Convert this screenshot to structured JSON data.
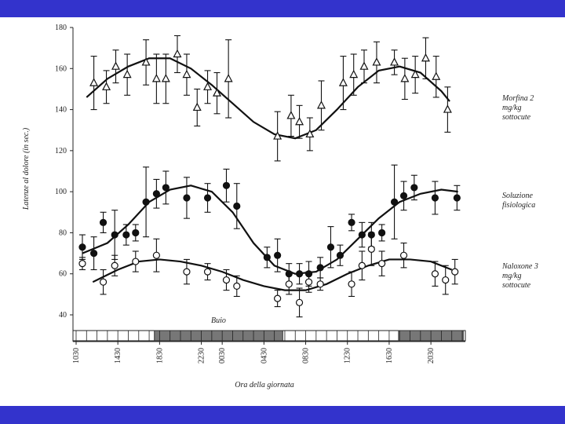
{
  "chart_data": {
    "type": "errorbar",
    "y_label": "Latenze al dolore (in sec.)",
    "x_label": "Ora della giornata",
    "dark_label": "Buio",
    "dark_periods": [
      [
        7.5,
        19.8
      ],
      [
        30.9,
        37.1
      ]
    ],
    "xlim": [
      -0.3,
      37.3
    ],
    "xticks": [
      {
        "value": 0,
        "label": "1030"
      },
      {
        "value": 4,
        "label": "1430"
      },
      {
        "value": 8,
        "label": "1830"
      },
      {
        "value": 12,
        "label": "2230"
      },
      {
        "value": 14,
        "label": "0030"
      },
      {
        "value": 18,
        "label": "0430"
      },
      {
        "value": 22,
        "label": "0830"
      },
      {
        "value": 26,
        "label": "1230"
      },
      {
        "value": 30,
        "label": "1630"
      },
      {
        "value": 34,
        "label": "2030"
      }
    ],
    "ylim": [
      27,
      180
    ],
    "yticks": [
      40,
      60,
      80,
      100,
      120,
      140,
      160,
      180
    ],
    "series": [
      {
        "name": "Morfina 2 mg/kg sottocute",
        "color": "#111111",
        "marker": "triangle-open",
        "x": [
          1.7,
          2.9,
          3.8,
          4.9,
          6.7,
          7.7,
          8.6,
          9.7,
          10.6,
          11.6,
          12.6,
          13.5,
          14.6,
          19.3,
          20.6,
          21.4,
          22.4,
          23.5,
          25.6,
          26.6,
          27.6,
          28.8,
          30.5,
          31.5,
          32.5,
          33.5,
          34.5,
          35.6
        ],
        "values": [
          153,
          151,
          161,
          157,
          163,
          155,
          155,
          167,
          157,
          141,
          151,
          148,
          155,
          127,
          137,
          134,
          128,
          142,
          153,
          157,
          161,
          163,
          163,
          155,
          157,
          165,
          156,
          140
        ],
        "errors": [
          13,
          8,
          8,
          10,
          11,
          12,
          12,
          9,
          10,
          9,
          8,
          10,
          19,
          12,
          10,
          8,
          8,
          12,
          13,
          10,
          8,
          10,
          6,
          10,
          9,
          10,
          10,
          11
        ],
        "fit": {
          "x": [
            1,
            3,
            5,
            7,
            9,
            11,
            13,
            15,
            17,
            19,
            21,
            23,
            25,
            27,
            29,
            31,
            33,
            35,
            35.8
          ],
          "values": [
            146,
            155,
            161,
            165,
            165,
            160,
            152,
            143,
            134,
            128,
            126,
            130,
            140,
            151,
            159,
            161,
            158,
            149,
            144
          ]
        }
      },
      {
        "name": "Soluzione fisiologica",
        "color": "#111111",
        "marker": "circle-filled",
        "x": [
          0.6,
          1.7,
          2.6,
          3.7,
          4.8,
          5.7,
          6.7,
          7.7,
          8.6,
          10.6,
          12.6,
          14.4,
          15.4,
          18.3,
          19.3,
          20.4,
          21.4,
          22.3,
          23.4,
          24.4,
          25.3,
          26.4,
          27.4,
          28.3,
          29.3,
          30.5,
          31.4,
          32.4,
          34.4,
          36.5
        ],
        "values": [
          73,
          70,
          85,
          79,
          79,
          80,
          95,
          99,
          102,
          97,
          97,
          103,
          93,
          68,
          69,
          60,
          60,
          60,
          63,
          73,
          69,
          85,
          79,
          79,
          80,
          95,
          98,
          102,
          97,
          97
        ],
        "errors": [
          6,
          8,
          5,
          12,
          5,
          4,
          17,
          7,
          8,
          10,
          7,
          8,
          11,
          5,
          8,
          5,
          5,
          6,
          5,
          10,
          5,
          4,
          6,
          6,
          4,
          18,
          7,
          6,
          8,
          6
        ],
        "fit": {
          "x": [
            0.6,
            3,
            5,
            7,
            9,
            11,
            13,
            15,
            17,
            19,
            21,
            23,
            25,
            27,
            29,
            31,
            33,
            35,
            36.6
          ],
          "values": [
            70,
            75,
            84,
            95,
            101,
            103,
            100,
            90,
            75,
            64,
            60,
            61,
            67,
            77,
            87,
            95,
            99,
            101,
            100
          ]
        }
      },
      {
        "name": "Naloxone 3 mg/kg sottocute",
        "color": "#111111",
        "marker": "circle-open",
        "x": [
          0.6,
          2.6,
          3.7,
          5.7,
          7.7,
          10.6,
          12.6,
          14.4,
          15.4,
          19.3,
          20.4,
          21.4,
          22.3,
          23.4,
          26.4,
          27.4,
          28.3,
          29.3,
          31.4,
          34.4,
          35.4,
          36.3
        ],
        "values": [
          65,
          56,
          64,
          66,
          69,
          61,
          61,
          57,
          54,
          48,
          55,
          46,
          56,
          55,
          55,
          64,
          72,
          65,
          69,
          60,
          57,
          61
        ],
        "errors": [
          3,
          6,
          5,
          5,
          8,
          6,
          4,
          5,
          5,
          4,
          5,
          7,
          5,
          3,
          6,
          7,
          8,
          6,
          6,
          6,
          7,
          6
        ],
        "fit": {
          "x": [
            1.6,
            4,
            6,
            8,
            10,
            12,
            14,
            16,
            18,
            20,
            22,
            24,
            26,
            28,
            30,
            32,
            34,
            36
          ],
          "values": [
            56,
            62,
            66,
            67,
            66,
            64,
            61,
            57,
            54,
            52,
            52,
            55,
            60,
            64,
            67,
            67,
            66,
            62
          ]
        }
      }
    ]
  }
}
